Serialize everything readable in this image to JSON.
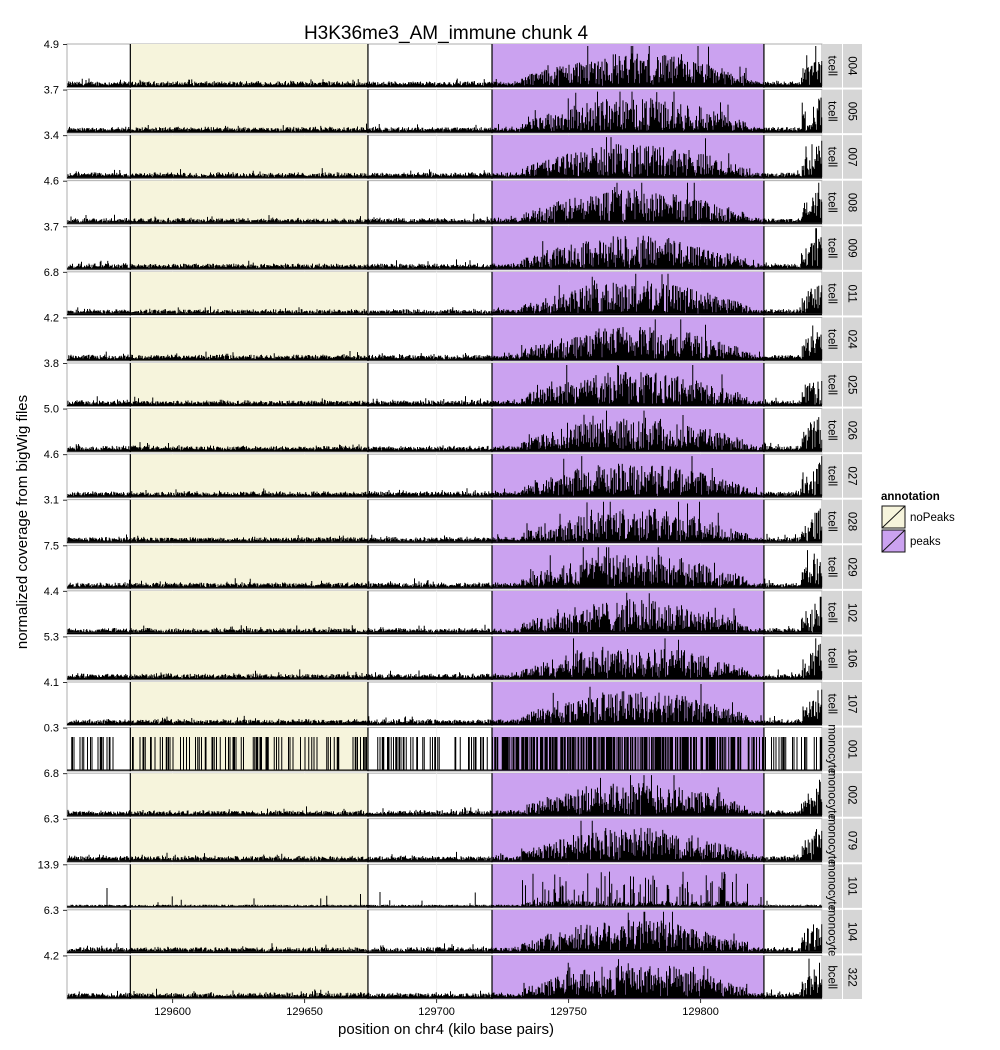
{
  "chart_data": {
    "type": "area",
    "title": "H3K36me3_AM_immune chunk 4",
    "xlabel": "position on chr4 (kilo base pairs)",
    "ylabel": "normalized coverage from bigWig files",
    "xlim": [
      129560,
      129846
    ],
    "x_ticks": [
      129600,
      129650,
      129700,
      129750,
      129800
    ],
    "grid": true,
    "legend": {
      "title": "annotation",
      "position": "right",
      "entries": [
        {
          "label": "noPeaks",
          "color": "#f6f4dc"
        },
        {
          "label": "peaks",
          "color": "#cba2f0"
        }
      ]
    },
    "annotations": [
      {
        "label": "noPeaks",
        "start": 129584,
        "end": 129674,
        "color": "#f6f4dc"
      },
      {
        "label": "peaks",
        "start": 129721,
        "end": 129824,
        "color": "#cba2f0"
      }
    ],
    "signal_peak_region": [
      129732,
      129818
    ],
    "panels": [
      {
        "sample": "004",
        "cell_type": "tcell",
        "ymax": "4.9"
      },
      {
        "sample": "005",
        "cell_type": "tcell",
        "ymax": "3.7"
      },
      {
        "sample": "007",
        "cell_type": "tcell",
        "ymax": "3.4"
      },
      {
        "sample": "008",
        "cell_type": "tcell",
        "ymax": "4.6"
      },
      {
        "sample": "009",
        "cell_type": "tcell",
        "ymax": "3.7"
      },
      {
        "sample": "011",
        "cell_type": "tcell",
        "ymax": "6.8"
      },
      {
        "sample": "024",
        "cell_type": "tcell",
        "ymax": "4.2"
      },
      {
        "sample": "025",
        "cell_type": "tcell",
        "ymax": "3.8"
      },
      {
        "sample": "026",
        "cell_type": "tcell",
        "ymax": "5.0"
      },
      {
        "sample": "027",
        "cell_type": "tcell",
        "ymax": "4.6"
      },
      {
        "sample": "028",
        "cell_type": "tcell",
        "ymax": "3.1"
      },
      {
        "sample": "029",
        "cell_type": "tcell",
        "ymax": "7.5"
      },
      {
        "sample": "102",
        "cell_type": "tcell",
        "ymax": "4.4"
      },
      {
        "sample": "106",
        "cell_type": "tcell",
        "ymax": "5.3"
      },
      {
        "sample": "107",
        "cell_type": "tcell",
        "ymax": "4.1"
      },
      {
        "sample": "001",
        "cell_type": "monocyte",
        "ymax": "0.3"
      },
      {
        "sample": "002",
        "cell_type": "monocyte",
        "ymax": "6.8"
      },
      {
        "sample": "079",
        "cell_type": "monocyte",
        "ymax": "6.3"
      },
      {
        "sample": "101",
        "cell_type": "monocyte",
        "ymax": "13.9"
      },
      {
        "sample": "104",
        "cell_type": "monocyte",
        "ymax": "6.3"
      },
      {
        "sample": "322",
        "cell_type": "bcell",
        "ymax": "4.2"
      }
    ]
  }
}
